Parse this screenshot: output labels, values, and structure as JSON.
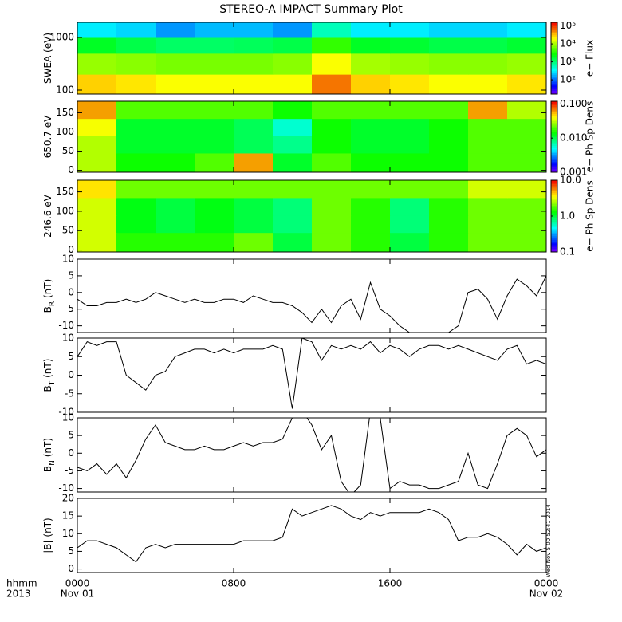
{
  "title": "STEREO-A IMPACT Summary Plot",
  "timestamp": "Wed Nov  5 00:52:41 2014",
  "xaxis": {
    "xlim": [
      0,
      24
    ],
    "xticks": [
      {
        "value": 0,
        "label": "0000"
      },
      {
        "value": 8,
        "label": "0800"
      },
      {
        "value": 16,
        "label": "1600"
      },
      {
        "value": 24,
        "label": "0000"
      }
    ],
    "dates": [
      {
        "value": 0,
        "label": "Nov 01"
      },
      {
        "value": 24,
        "label": "Nov 02"
      }
    ],
    "title": [
      "hhmm",
      "2013"
    ]
  },
  "chart_data": [
    {
      "type": "heatmap",
      "ylabel": "SWEA (eV)",
      "ylog": true,
      "ylim": [
        84,
        1940
      ],
      "yticks": [
        100,
        1000
      ],
      "x": [
        0,
        2,
        4,
        6,
        8,
        10,
        12,
        14,
        16,
        18,
        20,
        22,
        24
      ],
      "ybins": [
        84,
        200,
        500,
        1000,
        1940
      ],
      "colormap": "rainbow",
      "z": [
        [
          30000,
          25000,
          20000,
          20000,
          20000,
          20000,
          60000,
          30000,
          25000,
          20000,
          20000,
          25000
        ],
        [
          9000,
          8000,
          7000,
          7000,
          7000,
          8000,
          20000,
          10000,
          9000,
          8000,
          8000,
          9000
        ],
        [
          2000,
          1500,
          1200,
          1200,
          1300,
          1500,
          4000,
          2000,
          1800,
          1500,
          1500,
          1800
        ],
        [
          300,
          250,
          150,
          200,
          200,
          150,
          600,
          300,
          300,
          250,
          250,
          300
        ]
      ],
      "colorbar": {
        "label": "e− Flux",
        "log": true,
        "clim": [
          16,
          160000
        ],
        "ticks": [
          {
            "value": 100,
            "label": "10²"
          },
          {
            "value": 1000,
            "label": "10³"
          },
          {
            "value": 10000,
            "label": "10⁴"
          },
          {
            "value": 100000,
            "label": "10⁵"
          }
        ]
      }
    },
    {
      "type": "heatmap",
      "ylabel": "650.7 eV",
      "ylog": false,
      "ylim": [
        -5,
        180
      ],
      "yticks": [
        0,
        50,
        100,
        150
      ],
      "x": [
        0,
        2,
        4,
        6,
        8,
        10,
        12,
        14,
        16,
        18,
        20,
        22,
        24
      ],
      "ybins": [
        -5,
        45,
        90,
        135,
        180
      ],
      "colormap": "rainbow",
      "z": [
        [
          0.03,
          0.015,
          0.015,
          0.02,
          0.06,
          0.012,
          0.02,
          0.015,
          0.015,
          0.015,
          0.02,
          0.02
        ],
        [
          0.03,
          0.012,
          0.012,
          0.012,
          0.01,
          0.008,
          0.015,
          0.012,
          0.012,
          0.015,
          0.02,
          0.02
        ],
        [
          0.04,
          0.012,
          0.012,
          0.012,
          0.01,
          0.006,
          0.015,
          0.012,
          0.012,
          0.015,
          0.02,
          0.02
        ],
        [
          0.06,
          0.02,
          0.02,
          0.02,
          0.02,
          0.015,
          0.02,
          0.02,
          0.02,
          0.02,
          0.06,
          0.03
        ]
      ],
      "colorbar": {
        "label": "e− Ph Sp Dens",
        "log": true,
        "clim": [
          0.001,
          0.12
        ],
        "ticks": [
          0.001,
          {
            "value": 0.01,
            "label": "0.010"
          },
          {
            "value": 0.1,
            "label": "0.100"
          }
        ]
      }
    },
    {
      "type": "heatmap",
      "ylabel": "246.6 eV",
      "ylog": false,
      "ylim": [
        -5,
        180
      ],
      "yticks": [
        0,
        50,
        100,
        150
      ],
      "x": [
        0,
        2,
        4,
        6,
        8,
        10,
        12,
        14,
        16,
        18,
        20,
        22,
        24
      ],
      "ybins": [
        -5,
        45,
        90,
        135,
        180
      ],
      "colormap": "rainbow",
      "z": [
        [
          3,
          1.5,
          1.5,
          1.5,
          2,
          1,
          2,
          1.5,
          1,
          1.5,
          2,
          2
        ],
        [
          3,
          1.2,
          1,
          1.2,
          1,
          0.8,
          2,
          1.5,
          0.8,
          1.5,
          2,
          2
        ],
        [
          3,
          1.2,
          1,
          1.2,
          1,
          0.8,
          2,
          1.5,
          0.8,
          1.5,
          2,
          2
        ],
        [
          4,
          2,
          2,
          2,
          2,
          2,
          2,
          2,
          2,
          2,
          3,
          3
        ]
      ],
      "colorbar": {
        "label": "e− Ph Sp Dens",
        "log": true,
        "clim": [
          0.1,
          10
        ],
        "ticks": [
          0.1,
          {
            "value": 1,
            "label": "1.0"
          },
          {
            "value": 10,
            "label": "10.0"
          }
        ]
      }
    },
    {
      "type": "line",
      "ylabel": "B",
      "ylabel_sub": "R",
      "ylabel_unit": "(nT)",
      "ylim": [
        -12,
        10
      ],
      "yticks": [
        -10,
        -5,
        0,
        5,
        10
      ],
      "color": "#000000",
      "x": [
        0,
        0.5,
        1,
        1.5,
        2,
        2.5,
        3,
        3.5,
        4,
        4.5,
        5,
        5.5,
        6,
        6.5,
        7,
        7.5,
        8,
        8.5,
        9,
        9.5,
        10,
        10.5,
        11,
        11.5,
        12,
        12.5,
        13,
        13.5,
        14,
        14.5,
        15,
        15.5,
        16,
        16.5,
        17,
        17.5,
        18,
        18.5,
        19,
        19.5,
        20,
        20.5,
        21,
        21.5,
        22,
        22.5,
        23,
        23.5,
        24
      ],
      "values": [
        -2,
        -4,
        -4,
        -3,
        -3,
        -2,
        -3,
        -2,
        0,
        -1,
        -2,
        -3,
        -2,
        -3,
        -3,
        -2,
        -2,
        -3,
        -1,
        -2,
        -3,
        -3,
        -4,
        -6,
        -9,
        -5,
        -9,
        -4,
        -2,
        -8,
        3,
        -5,
        -7,
        -10,
        -12,
        -12,
        -12,
        -12,
        -12,
        -10,
        0,
        1,
        -2,
        -8,
        -1,
        4,
        2,
        -1,
        5
      ]
    },
    {
      "type": "line",
      "ylabel": "B",
      "ylabel_sub": "T",
      "ylabel_unit": "(nT)",
      "ylim": [
        -10,
        10
      ],
      "yticks": [
        -10,
        -5,
        0,
        5,
        10
      ],
      "color": "#000000",
      "x": [
        0,
        0.5,
        1,
        1.5,
        2,
        2.5,
        3,
        3.5,
        4,
        4.5,
        5,
        5.5,
        6,
        6.5,
        7,
        7.5,
        8,
        8.5,
        9,
        9.5,
        10,
        10.5,
        11,
        11.5,
        12,
        12.5,
        13,
        13.5,
        14,
        14.5,
        15,
        15.5,
        16,
        16.5,
        17,
        17.5,
        18,
        18.5,
        19,
        19.5,
        20,
        20.5,
        21,
        21.5,
        22,
        22.5,
        23,
        23.5,
        24
      ],
      "values": [
        5,
        9,
        8,
        9,
        9,
        0,
        -2,
        -4,
        0,
        1,
        5,
        6,
        7,
        7,
        6,
        7,
        6,
        7,
        7,
        7,
        8,
        7,
        -9,
        10,
        9,
        4,
        8,
        7,
        8,
        7,
        9,
        6,
        8,
        7,
        5,
        7,
        8,
        8,
        7,
        8,
        7,
        6,
        5,
        4,
        7,
        8,
        3,
        4,
        3
      ]
    },
    {
      "type": "line",
      "ylabel": "B",
      "ylabel_sub": "N",
      "ylabel_unit": "(nT)",
      "ylim": [
        -11,
        10
      ],
      "yticks": [
        -10,
        -5,
        0,
        5,
        10
      ],
      "color": "#000000",
      "x": [
        0,
        0.5,
        1,
        1.5,
        2,
        2.5,
        3,
        3.5,
        4,
        4.5,
        5,
        5.5,
        6,
        6.5,
        7,
        7.5,
        8,
        8.5,
        9,
        9.5,
        10,
        10.5,
        11,
        11.5,
        12,
        12.5,
        13,
        13.5,
        14,
        14.5,
        15,
        15.5,
        16,
        16.5,
        17,
        17.5,
        18,
        18.5,
        19,
        19.5,
        20,
        20.5,
        21,
        21.5,
        22,
        22.5,
        23,
        23.5,
        24
      ],
      "values": [
        -4,
        -5,
        -3,
        -6,
        -3,
        -7,
        -2,
        4,
        8,
        3,
        2,
        1,
        1,
        2,
        1,
        1,
        2,
        3,
        2,
        3,
        3,
        4,
        10,
        12,
        8,
        1,
        5,
        -8,
        -12,
        -9,
        12,
        10,
        -10,
        -8,
        -9,
        -9,
        -10,
        -10,
        -9,
        -8,
        0,
        -9,
        -10,
        -3,
        5,
        7,
        5,
        -1,
        1
      ]
    },
    {
      "type": "line",
      "ylabel": "|B|",
      "ylabel_unit": "(nT)",
      "ylim": [
        -1,
        20
      ],
      "yticks": [
        0,
        5,
        10,
        15,
        20
      ],
      "color": "#000000",
      "x": [
        0,
        0.5,
        1,
        1.5,
        2,
        2.5,
        3,
        3.5,
        4,
        4.5,
        5,
        5.5,
        6,
        6.5,
        7,
        7.5,
        8,
        8.5,
        9,
        9.5,
        10,
        10.5,
        11,
        11.5,
        12,
        12.5,
        13,
        13.5,
        14,
        14.5,
        15,
        15.5,
        16,
        16.5,
        17,
        17.5,
        18,
        18.5,
        19,
        19.5,
        20,
        20.5,
        21,
        21.5,
        22,
        22.5,
        23,
        23.5,
        24
      ],
      "values": [
        6,
        8,
        8,
        7,
        6,
        4,
        2,
        6,
        7,
        6,
        7,
        7,
        7,
        7,
        7,
        7,
        7,
        8,
        8,
        8,
        8,
        9,
        17,
        15,
        16,
        17,
        18,
        17,
        15,
        14,
        16,
        15,
        16,
        16,
        16,
        16,
        17,
        16,
        14,
        8,
        9,
        9,
        10,
        9,
        7,
        4,
        7,
        5,
        6
      ]
    }
  ]
}
